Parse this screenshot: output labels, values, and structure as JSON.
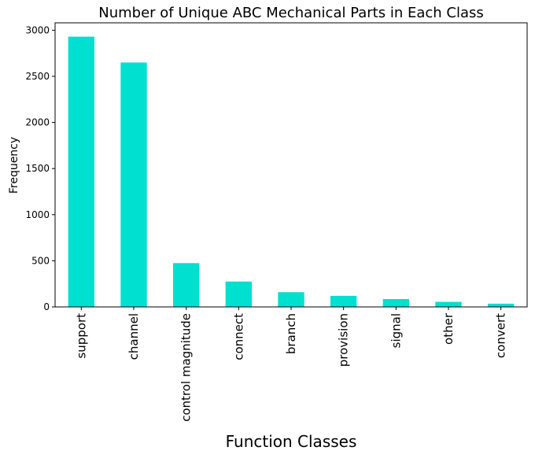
{
  "chart_data": {
    "type": "bar",
    "title": "Number of Unique ABC Mechanical Parts in Each Class",
    "xlabel": "Function Classes",
    "ylabel": "Frequency",
    "categories": [
      "support",
      "channel",
      "control magnitude",
      "connect",
      "branch",
      "provision",
      "signal",
      "other",
      "convert"
    ],
    "values": [
      2930,
      2650,
      475,
      275,
      160,
      120,
      85,
      55,
      35
    ],
    "ylim": [
      0,
      3080
    ],
    "yticks": [
      0,
      500,
      1000,
      1500,
      2000,
      2500,
      3000
    ],
    "grid": false,
    "legend": "none",
    "bar_color": "#00e0d0"
  }
}
